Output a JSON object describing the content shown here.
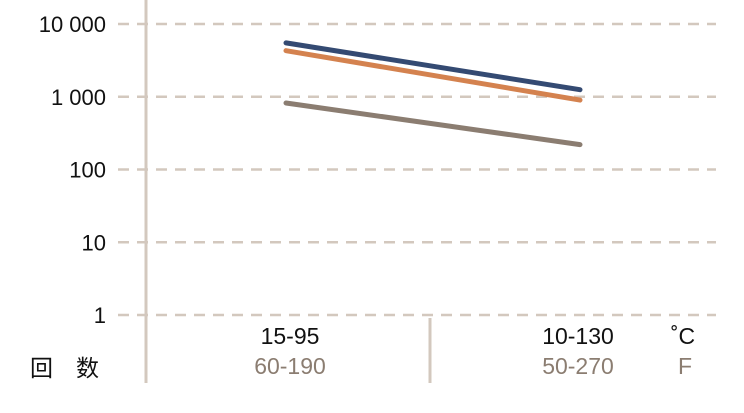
{
  "chart_data": {
    "type": "line",
    "scale": "log",
    "title": "",
    "ylabel": "回　数",
    "xlabel": "",
    "ylim": [
      1,
      10000
    ],
    "grid": true,
    "y_ticks": [
      {
        "value": 1,
        "label": "1"
      },
      {
        "value": 10,
        "label": "10"
      },
      {
        "value": 100,
        "label": "100"
      },
      {
        "value": 1000,
        "label": "1 000"
      },
      {
        "value": 10000,
        "label": "10 000"
      }
    ],
    "categories": [
      {
        "celsius": "15-95",
        "fahrenheit": "60-190"
      },
      {
        "celsius": "10-130",
        "fahrenheit": "50-270"
      }
    ],
    "unit_celsius": "˚C",
    "unit_fahrenheit": "F",
    "series": [
      {
        "values": [
          5500,
          1250
        ],
        "color": "#344a72"
      },
      {
        "values": [
          4300,
          900
        ],
        "color": "#d4824f"
      },
      {
        "values": [
          820,
          220
        ],
        "color": "#8b7d71"
      }
    ]
  }
}
